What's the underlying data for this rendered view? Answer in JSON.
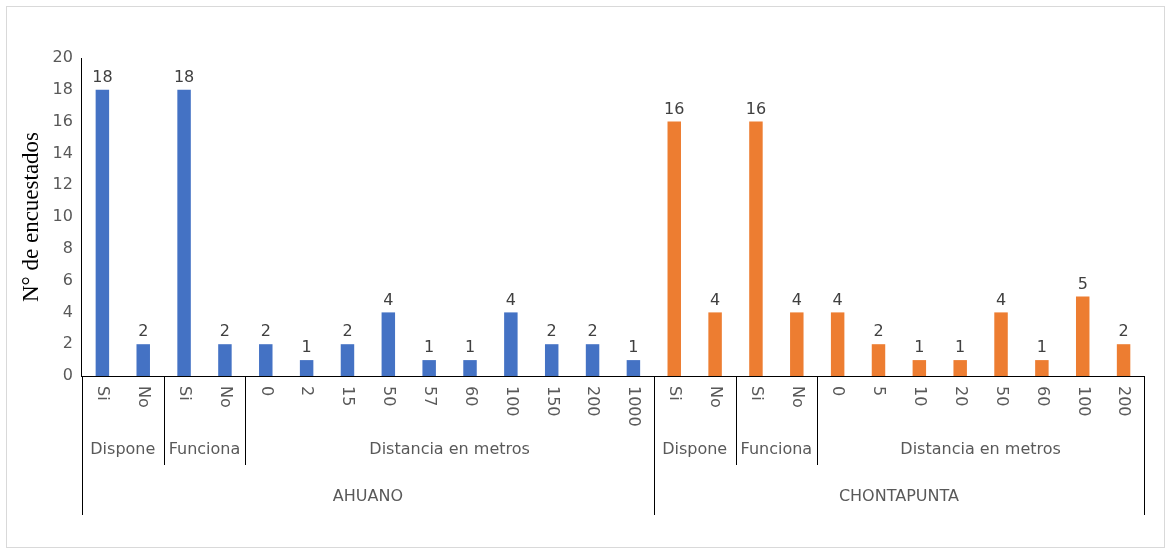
{
  "chart_data": {
    "type": "bar",
    "ylabel": "N° de encuestados",
    "categories": [
      "Si",
      "No",
      "Si",
      "No",
      "0",
      "2",
      "15",
      "50",
      "57",
      "60",
      "100",
      "150",
      "200",
      "1000",
      "Si",
      "No",
      "Si",
      "No",
      "0",
      "5",
      "10",
      "20",
      "50",
      "60",
      "100",
      "200"
    ],
    "values": [
      18,
      2,
      18,
      2,
      2,
      1,
      2,
      4,
      1,
      1,
      4,
      2,
      2,
      1,
      16,
      4,
      16,
      4,
      4,
      2,
      1,
      1,
      4,
      1,
      5,
      2
    ],
    "colors": [
      "#4472c4",
      "#4472c4",
      "#4472c4",
      "#4472c4",
      "#4472c4",
      "#4472c4",
      "#4472c4",
      "#4472c4",
      "#4472c4",
      "#4472c4",
      "#4472c4",
      "#4472c4",
      "#4472c4",
      "#4472c4",
      "#ed7d31",
      "#ed7d31",
      "#ed7d31",
      "#ed7d31",
      "#ed7d31",
      "#ed7d31",
      "#ed7d31",
      "#ed7d31",
      "#ed7d31",
      "#ed7d31",
      "#ed7d31",
      "#ed7d31"
    ],
    "annotations": [
      "Dispone",
      "Funciona",
      "Distancia en metros",
      "Dispone",
      "Funciona",
      "Distancia en metros",
      "AHUANO",
      "CHONTAPUNTA"
    ],
    "ylim": [
      0,
      20
    ],
    "yticks": [
      0,
      2,
      4,
      6,
      8,
      10,
      12,
      14,
      16,
      18,
      20
    ],
    "data_labels": true,
    "grid": false,
    "legend": false
  }
}
